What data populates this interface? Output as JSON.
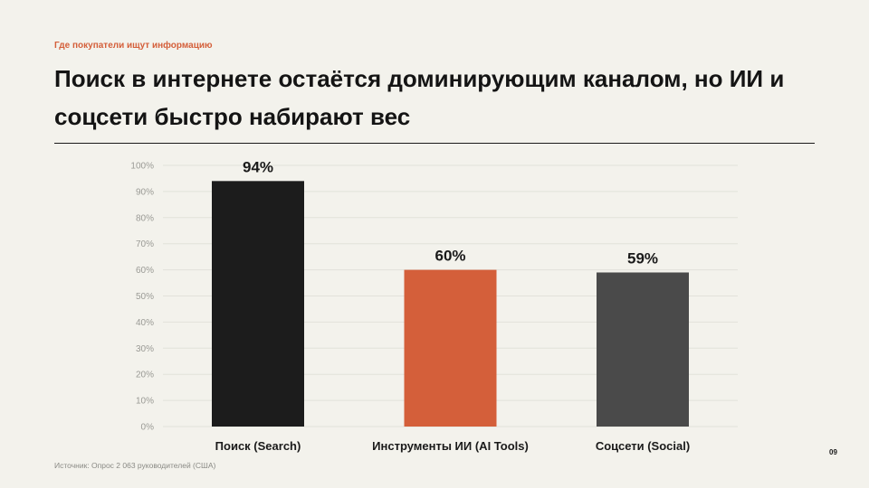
{
  "slide": {
    "eyebrow": "Где покупатели ищут информацию",
    "title": "Поиск в интернете остаётся доминирующим каналом, но ИИ и соцсети быстро набирают вес",
    "source": "Источник: Опрос 2 063 руководителей (США)",
    "page_number": "09"
  },
  "colors": {
    "background": "#f3f2ec",
    "accent": "#d45f3a"
  },
  "chart_data": {
    "type": "bar",
    "title": "",
    "xlabel": "",
    "ylabel": "",
    "categories": [
      "Поиск (Search)",
      "Инструменты ИИ (AI Tools)",
      "Соцсети (Social)"
    ],
    "values": [
      94,
      60,
      59
    ],
    "value_labels": [
      "94%",
      "60%",
      "59%"
    ],
    "bar_colors": [
      "#1c1c1c",
      "#d45f3a",
      "#4a4a4a"
    ],
    "ylim": [
      0,
      100
    ],
    "yticks": [
      0,
      10,
      20,
      30,
      40,
      50,
      60,
      70,
      80,
      90,
      100
    ],
    "ytick_labels": [
      "0%",
      "10%",
      "20%",
      "30%",
      "40%",
      "50%",
      "60%",
      "70%",
      "80%",
      "90%",
      "100%"
    ],
    "grid": true,
    "legend": "none"
  }
}
